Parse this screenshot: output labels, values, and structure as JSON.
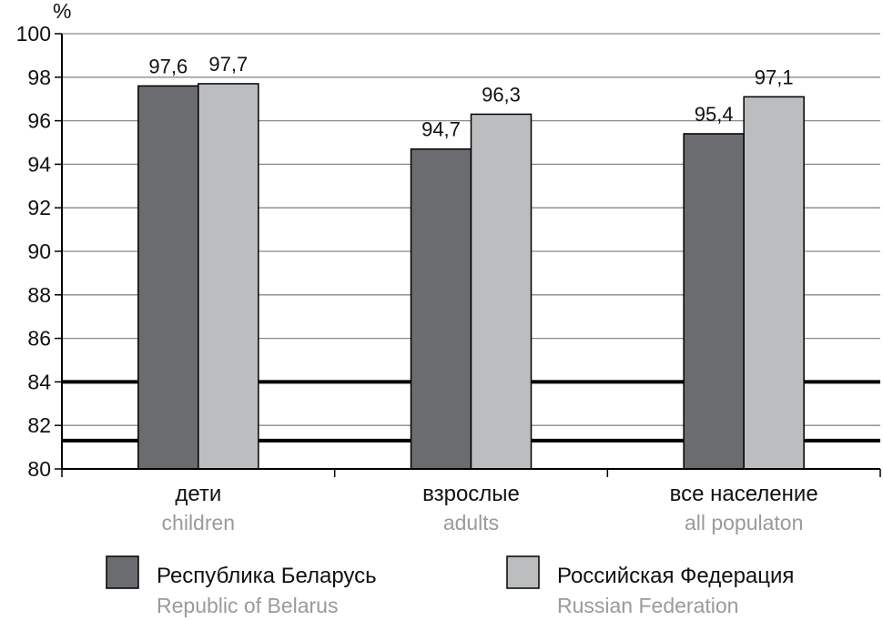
{
  "chart_data": {
    "type": "bar",
    "ylabel": "%",
    "ylim": [
      80,
      100
    ],
    "yticks": [
      80,
      82,
      84,
      86,
      88,
      90,
      92,
      94,
      96,
      98,
      100
    ],
    "grid": true,
    "categories": [
      {
        "ru": "дети",
        "en": "children"
      },
      {
        "ru": "взрослые",
        "en": "adults"
      },
      {
        "ru": "все население",
        "en": "all populaton"
      }
    ],
    "series": [
      {
        "name_ru": "Республика Беларусь",
        "name_en": "Republic of Belarus",
        "color": "#6b6c70",
        "values": [
          97.6,
          94.7,
          95.4
        ],
        "labels": [
          "97,6",
          "94,7",
          "95,4"
        ]
      },
      {
        "name_ru": "Российская Федерация",
        "name_en": "Russian Federation",
        "color": "#bcbdbf",
        "values": [
          97.7,
          96.3,
          97.1
        ],
        "labels": [
          "97,7",
          "96,3",
          "97,1"
        ]
      }
    ],
    "reference_lines": [
      84,
      81.3
    ],
    "legend_position": "bottom"
  }
}
